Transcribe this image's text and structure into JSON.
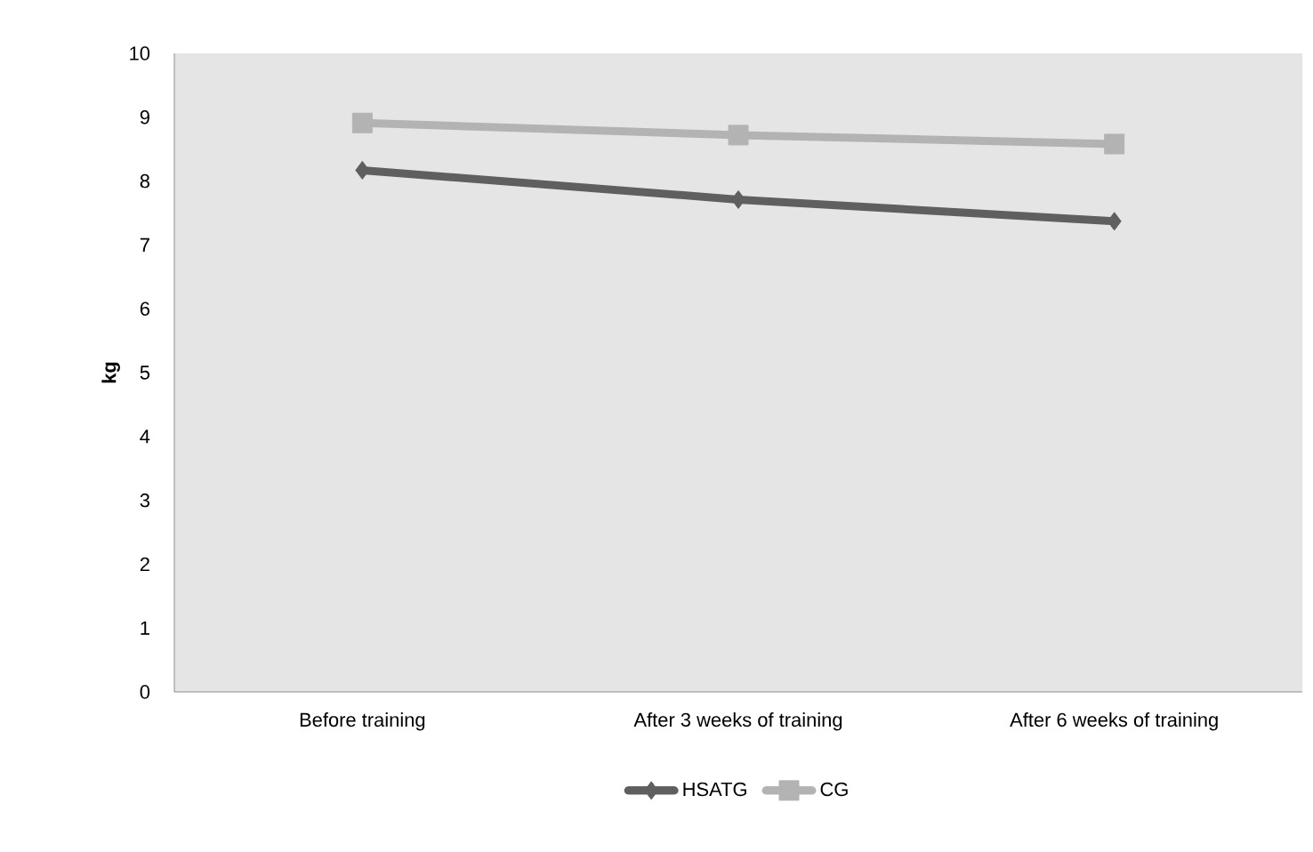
{
  "chart_data": {
    "type": "line",
    "ylabel": "kg",
    "categories": [
      "Before training",
      "After 3 weeks of training",
      "After 6 weeks of training"
    ],
    "series": [
      {
        "name": "HSATG",
        "color": "#5f5f5f",
        "values": [
          8.17,
          7.71,
          7.37
        ],
        "marker": "diamond"
      },
      {
        "name": "CG",
        "color": "#b3b3b3",
        "values": [
          8.91,
          8.72,
          8.58
        ],
        "marker": "square"
      }
    ],
    "ylim": [
      0,
      10
    ],
    "yticks": [
      0,
      1,
      2,
      3,
      4,
      5,
      6,
      7,
      8,
      9,
      10
    ],
    "grid": false,
    "legend": "bottom"
  }
}
